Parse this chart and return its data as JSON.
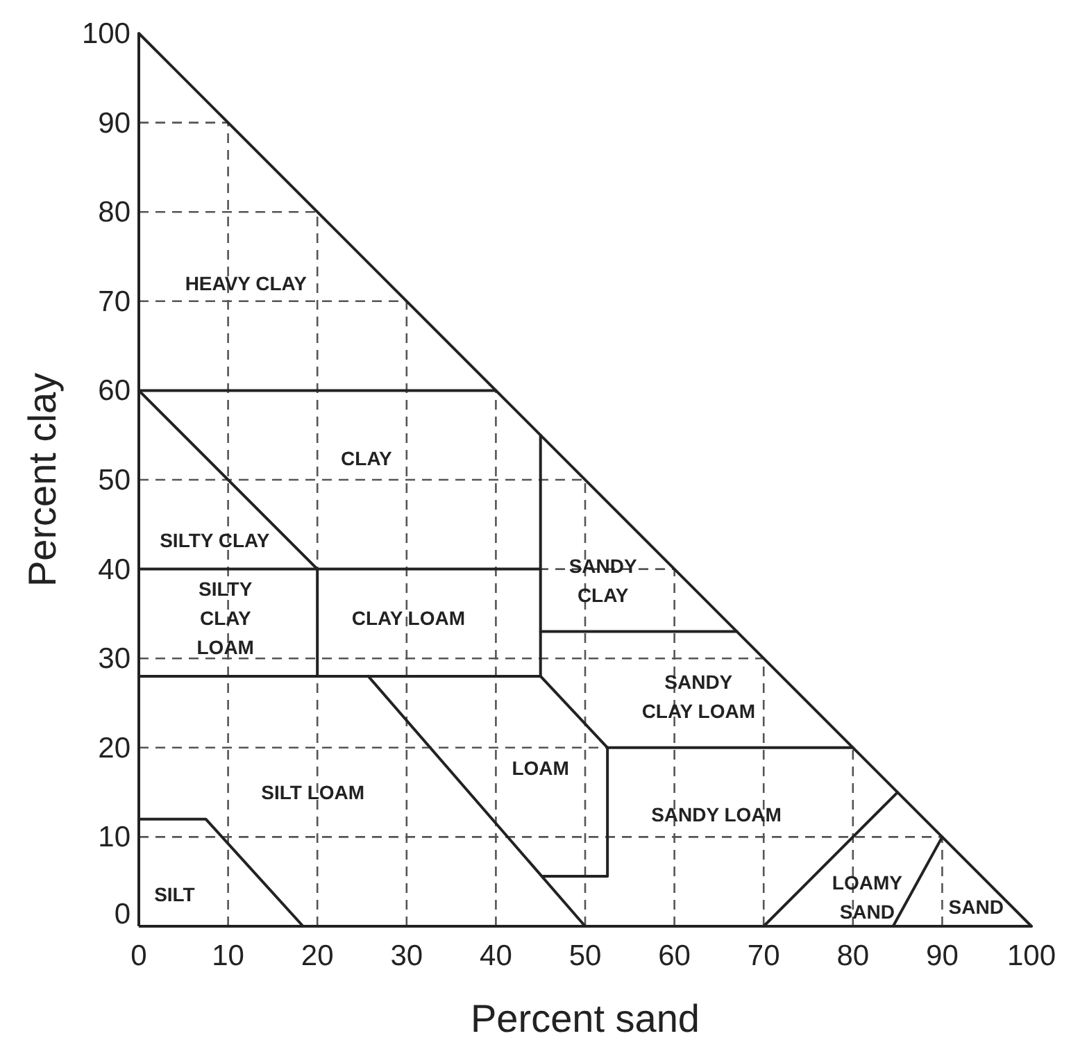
{
  "chart_data": {
    "type": "line",
    "xlabel": "Percent sand",
    "ylabel": "Percent clay",
    "xlim": [
      0,
      100
    ],
    "ylim": [
      0,
      100
    ],
    "xticks": [
      0,
      10,
      20,
      30,
      40,
      50,
      60,
      70,
      80,
      90,
      100
    ],
    "yticks": [
      0,
      10,
      20,
      30,
      40,
      50,
      60,
      70,
      80,
      90,
      100
    ],
    "grid": true,
    "marker": "none",
    "line_style": "solid",
    "series": [
      {
        "color": "#222222",
        "x": [
          0,
          100
        ],
        "values": [
          100,
          0
        ]
      },
      {
        "color": "#222222",
        "x": [
          0,
          40
        ],
        "values": [
          60,
          60
        ]
      },
      {
        "color": "#222222",
        "x": [
          0,
          20
        ],
        "values": [
          60,
          40
        ]
      },
      {
        "color": "#222222",
        "x": [
          0,
          45
        ],
        "values": [
          40,
          40
        ]
      },
      {
        "color": "#222222",
        "x": [
          20,
          20
        ],
        "values": [
          40,
          28
        ]
      },
      {
        "color": "#222222",
        "x": [
          0,
          45
        ],
        "values": [
          28,
          28
        ]
      },
      {
        "color": "#222222",
        "x": [
          45,
          45
        ],
        "values": [
          55,
          28
        ]
      },
      {
        "color": "#222222",
        "x": [
          45,
          67
        ],
        "values": [
          33,
          33
        ]
      },
      {
        "color": "#222222",
        "x": [
          45,
          52.5,
          52.5,
          45.2
        ],
        "values": [
          28,
          20,
          5.6,
          5.6
        ]
      },
      {
        "color": "#222222",
        "x": [
          52.5,
          80
        ],
        "values": [
          20,
          20
        ]
      },
      {
        "color": "#222222",
        "x": [
          25.7,
          50
        ],
        "values": [
          28,
          0
        ]
      },
      {
        "color": "#222222",
        "x": [
          0,
          7.5,
          18.4
        ],
        "values": [
          12,
          12,
          0
        ]
      },
      {
        "color": "#222222",
        "x": [
          70,
          85
        ],
        "values": [
          0,
          15
        ]
      },
      {
        "color": "#222222",
        "x": [
          84.5,
          90
        ],
        "values": [
          0,
          10
        ]
      }
    ],
    "annotations": [
      "HEAVY CLAY",
      "CLAY",
      "SILTY CLAY",
      "SILTY\nCLAY\nLOAM",
      "CLAY LOAM",
      "SANDY\nCLAY",
      "SANDY\nCLAY LOAM",
      "LOAM",
      "SILT LOAM",
      "SANDY LOAM",
      "SILT",
      "LOAMY\nSAND",
      "SAND"
    ]
  }
}
